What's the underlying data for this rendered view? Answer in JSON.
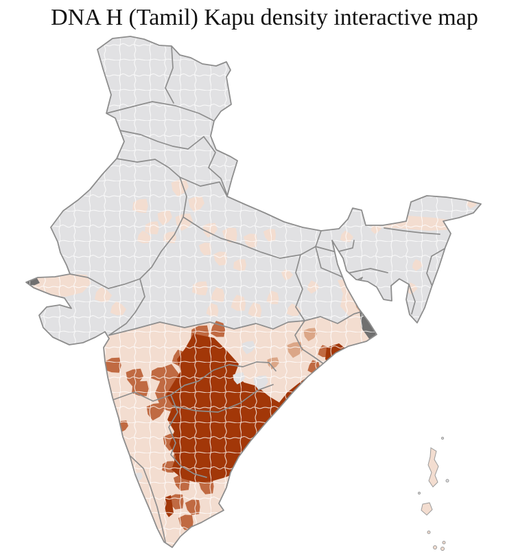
{
  "title": "DNA H (Tamil) Kapu density interactive map",
  "map": {
    "label": "India district-level density choropleth",
    "colors": {
      "background": "#ffffff",
      "title_ink": "#111111",
      "district_line": "#ffffff",
      "state_line": "#8d8d8d",
      "outline": "#8d8d8d",
      "island_outline": "#9a9a9a"
    },
    "palette": {
      "no_data": "#e1e1e3",
      "low": "#f3ddd0",
      "medium_low": "#dba687",
      "medium": "#c06a42",
      "high": "#a23708",
      "masked": "#707070"
    },
    "regions": {
      "north-india": "no_data",
      "peninsula": "low",
      "kutch": "low",
      "saurashtra": "no_data",
      "scattered-district": "low",
      "east-deccan-pocket": "no_data",
      "hyderabad": "no_data",
      "coastal-karnataka-pocket": "no_data",
      "west-coast-district": "medium",
      "karnataka-district": "medium",
      "north-karnataka-fringe": "medium",
      "tamil-nadu-district": "medium",
      "odisha-district": "medium_low",
      "kolkata-district": "medium_low",
      "coastal-fringe-district": "medium",
      "andhra-telangana-core": "high",
      "ganjam-coastal-district": "high",
      "kaveri-strip-district": "high",
      "bengal-strip": "low",
      "assam-valley": "low",
      "northeast-district": "low",
      "sundarbans": "masked",
      "kutch-marsh": "masked",
      "andaman-islands": "low",
      "island-dot": "no_data"
    }
  }
}
